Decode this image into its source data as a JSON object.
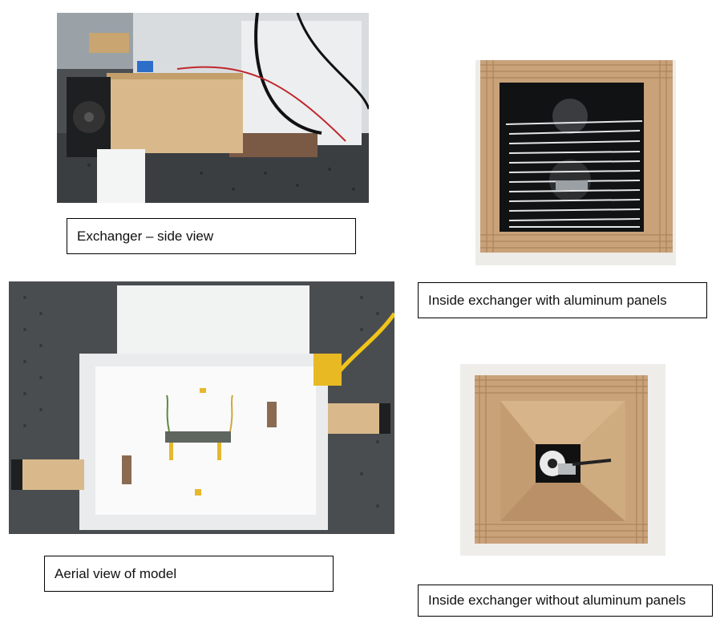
{
  "figure": {
    "photos": [
      {
        "subject": "exchanger-side-photo"
      },
      {
        "subject": "inside-with-panels-photo"
      },
      {
        "subject": "aerial-model-photo"
      },
      {
        "subject": "inside-without-panels-photo"
      }
    ],
    "captions": {
      "side_view": "Exchanger – side view",
      "with_panels": "Inside exchanger with aluminum panels",
      "aerial": "Aerial view of model",
      "without_panels": "Inside exchanger without aluminum panels"
    }
  }
}
